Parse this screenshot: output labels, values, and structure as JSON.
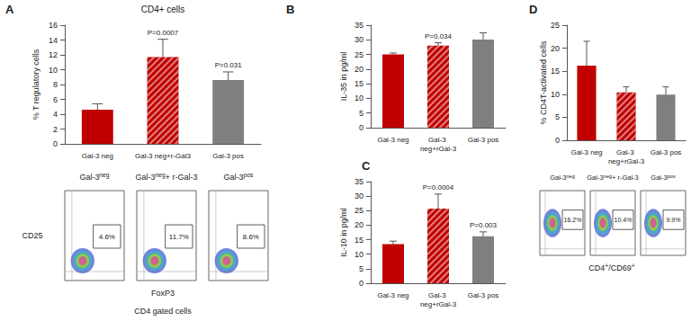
{
  "chart_data": [
    {
      "panel": "A",
      "title": "CD4+ cells",
      "type": "bar",
      "y_label": "% T regulatory cells",
      "categories": [
        "Gal-3 neg",
        "Gal-3 neg+r-Gal3",
        "Gal-3 pos"
      ],
      "values": [
        4.6,
        11.7,
        8.6
      ],
      "errors": [
        0.8,
        2.4,
        1.1
      ],
      "colors": [
        "#c00000",
        "#c00000",
        "#7f7f7f"
      ],
      "ylim": [
        0,
        16
      ],
      "yticks": [
        0,
        2,
        4,
        6,
        8,
        10,
        12,
        14,
        16
      ],
      "grid": false,
      "annotations": [
        {
          "category": "Gal-3 neg+r-Gal3",
          "text": "P=0.0007"
        },
        {
          "category": "Gal-3 pos",
          "text": "P=0.031"
        }
      ]
    },
    {
      "panel": "B",
      "type": "bar",
      "y_label": "IL-35 in pg/ml",
      "categories": [
        "Gal-3 neg",
        "Gal-3 neg+rGal-3",
        "Gal-3 pos"
      ],
      "values": [
        25.0,
        28.0,
        30.1
      ],
      "errors": [
        0.5,
        1.0,
        2.3
      ],
      "colors": [
        "#c00000",
        "#c00000",
        "#7f7f7f"
      ],
      "ylim": [
        0,
        35
      ],
      "yticks": [
        0,
        5,
        10,
        15,
        20,
        25,
        30,
        35
      ],
      "grid": false,
      "annotations": [
        {
          "category": "Gal-3 neg+rGal-3",
          "text": "P=0.034"
        }
      ]
    },
    {
      "panel": "C",
      "type": "bar",
      "y_label": "IL-10 in pg/ml",
      "categories": [
        "Gal-3 neg",
        "Gal-3 neg+rGal-3",
        "Gal-3 pos"
      ],
      "values": [
        13.5,
        25.7,
        16.2
      ],
      "errors": [
        1.0,
        5.0,
        1.5
      ],
      "colors": [
        "#c00000",
        "#c00000",
        "#7f7f7f"
      ],
      "ylim": [
        0,
        35
      ],
      "yticks": [
        0,
        5,
        10,
        15,
        20,
        25,
        30,
        35
      ],
      "grid": false,
      "annotations": [
        {
          "category": "Gal-3 neg+rGal-3",
          "text": "P=0.0004"
        },
        {
          "category": "Gal-3 pos",
          "text": "P=0.003"
        }
      ]
    },
    {
      "panel": "D",
      "type": "bar",
      "y_label": "% CD4T-activated cells",
      "categories": [
        "Gal-3 neg",
        "Gal-3 neg+rGal-3",
        "Gal-3 pos"
      ],
      "values": [
        16.2,
        10.4,
        9.9
      ],
      "errors": [
        5.3,
        1.2,
        1.7
      ],
      "colors": [
        "#c00000",
        "#c00000",
        "#7f7f7f"
      ],
      "ylim": [
        0,
        25
      ],
      "yticks": [
        0,
        5,
        10,
        15,
        20,
        25
      ],
      "grid": false
    }
  ],
  "flow_panels": [
    {
      "plots": [
        {
          "label": [
            {
              "text": "Gal-3"
            },
            {
              "text": "neg",
              "sup": true
            }
          ],
          "gate_label": "4.6%"
        },
        {
          "label": [
            {
              "text": "Gal-3"
            },
            {
              "text": "neg",
              "sup": true
            },
            {
              "text": "+ r-Gal-3"
            }
          ],
          "gate_label": "11.7%"
        },
        {
          "label": [
            {
              "text": "Gal-3"
            },
            {
              "text": "pos",
              "sup": true
            }
          ],
          "gate_label": "8.6%"
        }
      ],
      "y_label": "CD25",
      "x_label": "FoxP3",
      "caption": [
        {
          "text": "CD4 gated cells"
        }
      ]
    },
    {
      "plots": [
        {
          "label": [
            {
              "text": "Gal-3"
            },
            {
              "text": "neg",
              "sup": true
            }
          ],
          "gate_label": "16.2%"
        },
        {
          "label": [
            {
              "text": "Gal-3"
            },
            {
              "text": "neg",
              "sup": true
            },
            {
              "text": "+ r-Gal-3"
            }
          ],
          "gate_label": "10.4%"
        },
        {
          "label": [
            {
              "text": "Gal-3"
            },
            {
              "text": "pos",
              "sup": true
            }
          ],
          "gate_label": "9.9%"
        }
      ],
      "caption": [
        {
          "text": "CD4"
        },
        {
          "text": "+",
          "sup": true
        },
        {
          "text": "/CD69"
        },
        {
          "text": "+",
          "sup": true
        }
      ]
    }
  ]
}
